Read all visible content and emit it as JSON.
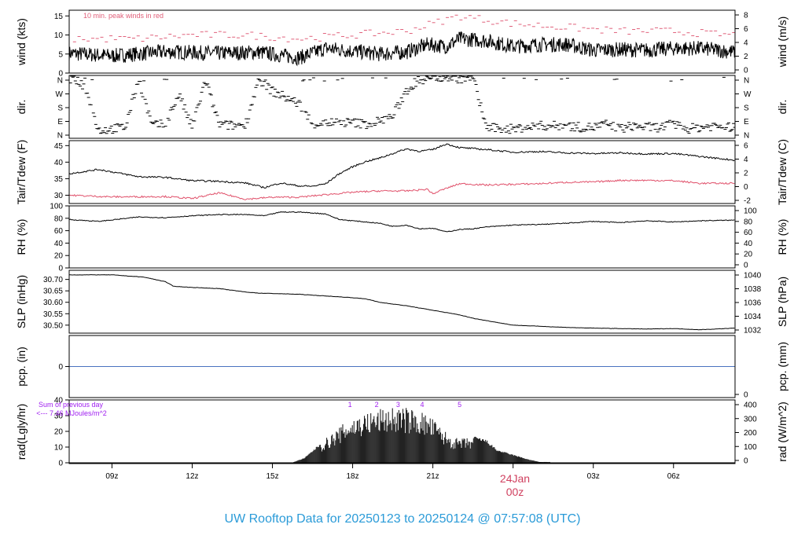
{
  "title": "UW Rooftop Data for 20250123  to  20250124 @ 07:57:08  (UTC)",
  "colors": {
    "title": "#2b9bd8",
    "peak": "#e0607a",
    "dewpoint": "#e0506a",
    "precip": "#4a72c0",
    "annotation": "#a020f0",
    "date_marker": "#d0405f",
    "trace": "#000000"
  },
  "x_axis": {
    "range_hours": [
      -16.6,
      8.3
    ],
    "tick_labels": [
      "09z",
      "12z",
      "15z",
      "18z",
      "21z",
      "03z",
      "06z"
    ],
    "tick_hours": [
      -15,
      -12,
      -9,
      -6,
      -3,
      3,
      6
    ],
    "date_marker": {
      "hour": 0,
      "date": "24Jan",
      "time": "00z"
    }
  },
  "chart_data": [
    {
      "type": "line",
      "name": "wind",
      "ylabel_left": "wind (kts)",
      "ylabel_right": "wind (m/s)",
      "ylim": [
        0,
        16.5
      ],
      "left_ticks": [
        "0",
        "5",
        "10",
        "15"
      ],
      "right_ticks": [
        "0",
        "2",
        "4",
        "6",
        "8"
      ],
      "annotation": "10 min. peak winds in red",
      "x": [
        -16.6,
        -15,
        -13,
        -11,
        -9.5,
        -8,
        -7,
        -6,
        -5,
        -4,
        -3.2,
        -2.5,
        -2,
        -1,
        0,
        1,
        2,
        3,
        4,
        5,
        6,
        7,
        8.3
      ],
      "y": [
        5.2,
        4.5,
        5.6,
        5.2,
        5.5,
        4.0,
        6.5,
        5.8,
        5.0,
        5.5,
        7.5,
        7.0,
        9.0,
        8.5,
        7.0,
        7.5,
        7.5,
        6.0,
        6.2,
        6.0,
        6.5,
        6.5,
        5.5
      ],
      "peak_x": [
        -16,
        -14,
        -12,
        -10,
        -8,
        -6,
        -4,
        -3,
        -2,
        -1,
        0,
        2,
        4,
        6,
        8
      ],
      "peak_y": [
        9,
        9,
        10,
        10,
        9,
        10,
        11,
        13,
        15,
        14,
        13,
        12,
        11,
        11,
        10
      ]
    },
    {
      "type": "scatter",
      "name": "dir",
      "ylabel_left": "dir.",
      "ylabel_right": "dir.",
      "ylim": [
        0,
        4
      ],
      "left_ticks": [
        "N",
        "E",
        "S",
        "W",
        "N"
      ],
      "right_ticks": [
        "N",
        "E",
        "S",
        "W",
        "N"
      ],
      "x": [
        -16.4,
        -16,
        -15.5,
        -15,
        -14.5,
        -14,
        -13.5,
        -13,
        -12.5,
        -12,
        -11.5,
        -11,
        -10.5,
        -10,
        -9.5,
        -9,
        -8.5,
        -8,
        -7.5,
        -7,
        -6.5,
        -6,
        -5.5,
        -5,
        -4.5,
        -4,
        -3.5,
        -3,
        -2.5,
        -2,
        -1.5,
        -1,
        -0.5,
        0,
        0.5,
        1,
        1.5,
        2,
        2.5,
        3,
        3.5,
        4,
        4.5,
        5,
        5.5,
        6,
        6.5,
        7,
        7.5,
        8
      ],
      "y": [
        3.7,
        3.2,
        0.5,
        0.6,
        0.7,
        3.8,
        0.8,
        0.9,
        2.8,
        0.7,
        3.7,
        0.9,
        0.8,
        0.9,
        3.8,
        3.0,
        2.6,
        2.2,
        0.9,
        1.0,
        1.0,
        1.0,
        0.9,
        1.1,
        1.4,
        3.0,
        3.7,
        3.9,
        3.9,
        3.8,
        3.9,
        0.7,
        0.6,
        0.6,
        0.7,
        0.8,
        0.8,
        0.8,
        0.7,
        0.7,
        0.9,
        0.6,
        0.8,
        0.7,
        0.7,
        0.9,
        0.6,
        0.7,
        0.8,
        0.7
      ]
    },
    {
      "type": "line",
      "name": "temperature",
      "ylabel_left": "Tair/Tdew (F)",
      "ylabel_right": "Tair/Tdew (C)",
      "ylim": [
        27.5,
        46.5
      ],
      "left_ticks": [
        "30",
        "35",
        "40",
        "45"
      ],
      "right_ticks": [
        "-2",
        "0",
        "2",
        "4",
        "6"
      ],
      "series": [
        {
          "x": [
            -16.6,
            -15.5,
            -14,
            -13,
            -12,
            -11,
            -10,
            -9.3,
            -8.7,
            -8,
            -7.5,
            -7,
            -6.5,
            -6,
            -5.5,
            -5,
            -4,
            -3.5,
            -3,
            -2.5,
            -2,
            -1,
            0,
            1,
            2,
            3,
            4,
            5,
            6,
            7,
            8.3
          ],
          "y": [
            36.5,
            37.8,
            35.6,
            35.4,
            34.4,
            34.2,
            33.7,
            32.3,
            33.7,
            32.8,
            32.7,
            33.5,
            36.5,
            38.6,
            40.2,
            41.2,
            44.0,
            43.3,
            43.8,
            45.5,
            44.4,
            43.8,
            43.0,
            43.2,
            42.8,
            42.6,
            42.8,
            42.5,
            42.6,
            41.7,
            40.6
          ]
        },
        {
          "x": [
            -16.6,
            -15,
            -13,
            -12,
            -11,
            -10,
            -9,
            -8,
            -7,
            -6,
            -5,
            -4,
            -3.2,
            -3,
            -2.7,
            -2,
            -1,
            0,
            1,
            2,
            3,
            4,
            5,
            6,
            7,
            8.3
          ],
          "y": [
            30.0,
            29.5,
            29.6,
            29.0,
            30.7,
            28.8,
            29.4,
            29.4,
            30.2,
            30.9,
            31.3,
            31.3,
            31.8,
            30.4,
            31.5,
            33.5,
            33.1,
            33.3,
            33.5,
            33.9,
            34.0,
            34.5,
            34.5,
            34.4,
            33.6,
            33.6
          ]
        }
      ]
    },
    {
      "type": "line",
      "name": "rh",
      "ylabel_left": "RH (%)",
      "ylabel_right": "RH (%)",
      "ylim": [
        0,
        100
      ],
      "left_ticks": [
        "0",
        "20",
        "40",
        "60",
        "80",
        "100"
      ],
      "right_ticks": [
        "0",
        "20",
        "40",
        "60",
        "80",
        "100"
      ],
      "x": [
        -16.6,
        -15.5,
        -14,
        -13,
        -12,
        -11,
        -10,
        -9.3,
        -8.7,
        -8,
        -7,
        -6.5,
        -6,
        -5,
        -4.5,
        -4,
        -3.5,
        -3,
        -2.5,
        -2,
        -1.5,
        -1,
        0,
        1,
        2,
        3,
        4,
        5,
        6,
        7,
        8.3
      ],
      "y": [
        78,
        75,
        82,
        81,
        84,
        86,
        86,
        84,
        90,
        90,
        87,
        78,
        76,
        72,
        67,
        69,
        63,
        64,
        58,
        62,
        63,
        66,
        69,
        70,
        72,
        75,
        73,
        76,
        74,
        76,
        77
      ]
    },
    {
      "type": "line",
      "name": "slp",
      "ylabel_left": "SLP (inHg)",
      "ylabel_right": "SLP (hPa)",
      "ylim": [
        30.465,
        30.74
      ],
      "left_ticks": [
        "30.50",
        "30.55",
        "30.60",
        "30.65",
        "30.70"
      ],
      "right_ticks": [
        "1032",
        "1034",
        "1036",
        "1038",
        "1040"
      ],
      "x": [
        -16.6,
        -15,
        -13.8,
        -13,
        -12.7,
        -12,
        -11,
        -10,
        -9.5,
        -8,
        -6,
        -5.5,
        -5,
        -4,
        -3,
        -2,
        -1.5,
        -1,
        0,
        1,
        2,
        3,
        4,
        5,
        6,
        7,
        8.3
      ],
      "y": [
        30.72,
        30.72,
        30.71,
        30.69,
        30.67,
        30.665,
        30.66,
        30.645,
        30.64,
        30.635,
        30.62,
        30.615,
        30.6,
        30.585,
        30.565,
        30.545,
        30.53,
        30.52,
        30.5,
        30.495,
        30.49,
        30.487,
        30.485,
        30.483,
        30.485,
        30.48,
        30.487
      ]
    },
    {
      "type": "line",
      "name": "precip",
      "ylabel_left": "pcp. (in)",
      "ylabel_right": "pcp. (mm)",
      "ylim": [
        -1,
        1
      ],
      "left_ticks": [
        "0"
      ],
      "right_ticks": [
        "0"
      ],
      "x": [
        -16.6,
        8.3
      ],
      "y": [
        0,
        0
      ]
    },
    {
      "type": "bar",
      "name": "radiation",
      "ylabel_left": "rad(Lgly/hr)",
      "ylabel_right": "rad (W/m^2)",
      "ylim": [
        -0.5,
        40
      ],
      "left_ticks": [
        "0",
        "10",
        "20",
        "30",
        "40"
      ],
      "right_ticks": [
        "0",
        "100",
        "200",
        "300",
        "400"
      ],
      "annotation_line1": "Sum of previous day",
      "annotation_line2": "<--- 7.46 MJoules/m^2",
      "hour_markers": [
        "1",
        "2",
        "3",
        "4",
        "5"
      ],
      "hour_marker_x": [
        -6.1,
        -5.1,
        -4.3,
        -3.4,
        -2.0
      ],
      "x": [
        -8.2,
        -7.8,
        -7.4,
        -7.0,
        -6.6,
        -6.2,
        -5.8,
        -5.4,
        -5.0,
        -4.6,
        -4.2,
        -3.8,
        -3.4,
        -3.0,
        -2.6,
        -2.2,
        -1.8,
        -1.4,
        -1.0,
        -0.6,
        -0.2,
        0.2,
        0.6,
        1.0
      ],
      "values": [
        0.5,
        3,
        9,
        15,
        20,
        26,
        29,
        31,
        33,
        34,
        34,
        33,
        31,
        27,
        20,
        15,
        15,
        16,
        14,
        8,
        6,
        4,
        2,
        0.5
      ]
    }
  ]
}
